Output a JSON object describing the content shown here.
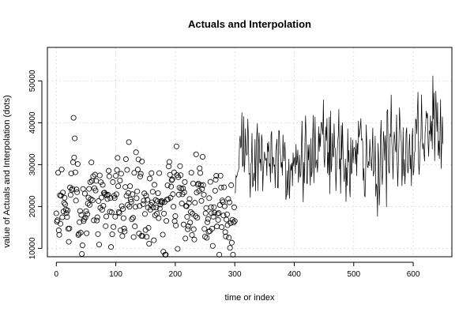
{
  "chart_data": {
    "type": "scatter",
    "title": "Actuals and Interpolation",
    "xlabel": "time or index",
    "ylabel": "value of Actuals and Interpolation (dots)",
    "xlim": [
      -15,
      665
    ],
    "ylim": [
      8000,
      58000
    ],
    "x_ticks": [
      0,
      100,
      200,
      300,
      400,
      500,
      600
    ],
    "y_ticks": [
      10000,
      20000,
      30000,
      40000,
      50000
    ],
    "grid": true,
    "series": [
      {
        "style": "points",
        "x_range": [
          0,
          300
        ],
        "x": [
          0,
          10,
          20,
          30,
          40,
          50,
          60,
          70,
          80,
          90,
          100,
          110,
          120,
          130,
          140,
          150,
          160,
          170,
          180,
          190,
          200,
          210,
          220,
          230,
          240,
          250,
          260,
          270,
          280,
          290,
          300
        ],
        "values": [
          20000,
          21000,
          17000,
          28000,
          14000,
          19000,
          24000,
          18000,
          26000,
          17000,
          23000,
          19000,
          25000,
          21000,
          24000,
          17000,
          22000,
          19000,
          15000,
          23000,
          21000,
          24000,
          18000,
          20000,
          26000,
          21000,
          18000,
          22000,
          20000,
          19000,
          17000
        ]
      },
      {
        "style": "line",
        "x_range": [
          300,
          650
        ],
        "x": [
          300,
          310,
          320,
          330,
          340,
          350,
          360,
          370,
          380,
          390,
          400,
          410,
          420,
          430,
          440,
          450,
          460,
          470,
          480,
          490,
          500,
          510,
          520,
          530,
          540,
          550,
          560,
          570,
          580,
          590,
          600,
          610,
          620,
          630,
          640,
          650
        ],
        "values": [
          24000,
          33000,
          35000,
          31000,
          29000,
          34000,
          33000,
          30000,
          36000,
          29000,
          30000,
          32000,
          31000,
          33000,
          29000,
          37000,
          33000,
          30000,
          32000,
          31000,
          30000,
          35000,
          29000,
          31000,
          30000,
          33000,
          35000,
          32000,
          34000,
          31000,
          33000,
          38000,
          34000,
          39000,
          41000,
          36000
        ]
      }
    ]
  }
}
